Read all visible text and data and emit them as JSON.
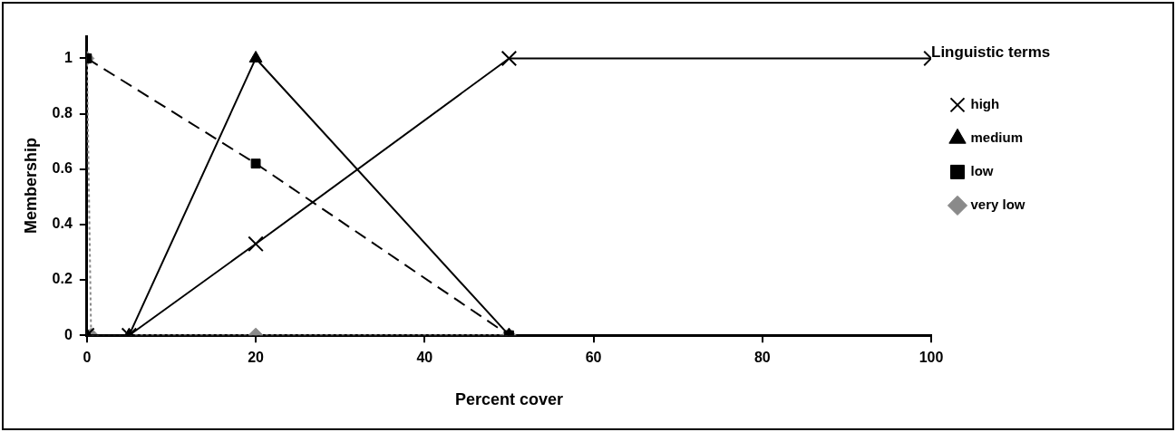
{
  "chart_data": {
    "type": "line",
    "xlabel": "Percent cover",
    "ylabel": "Membership",
    "legend_title": "Linguistic terms",
    "xlim": [
      0,
      100
    ],
    "xticks": [
      0,
      20,
      40,
      60,
      80,
      100
    ],
    "ylim": [
      0,
      1.08
    ],
    "yticks": [
      0,
      0.2,
      0.4,
      0.6,
      0.8,
      1
    ],
    "grid": false,
    "legend": "right",
    "series": [
      {
        "name": "very low",
        "color": "#8a8a8a",
        "marker": "diamond",
        "line_style": "dotted",
        "x": [
          0,
          0.5,
          20,
          50
        ],
        "values": [
          1,
          0,
          0,
          0
        ]
      },
      {
        "name": "low",
        "color": "#000000",
        "marker": "square",
        "line_style": "dashed",
        "x": [
          0,
          20,
          50
        ],
        "values": [
          1,
          0.62,
          0
        ]
      },
      {
        "name": "medium",
        "color": "#000000",
        "marker": "triangle",
        "line_style": "solid",
        "x": [
          0,
          5,
          20,
          50
        ],
        "values": [
          0,
          0,
          1,
          0
        ]
      },
      {
        "name": "high",
        "color": "#000000",
        "marker": "cross",
        "line_style": "solid",
        "x": [
          0,
          5,
          20,
          50,
          100
        ],
        "values": [
          0,
          0,
          0.33,
          1,
          1
        ]
      }
    ]
  }
}
